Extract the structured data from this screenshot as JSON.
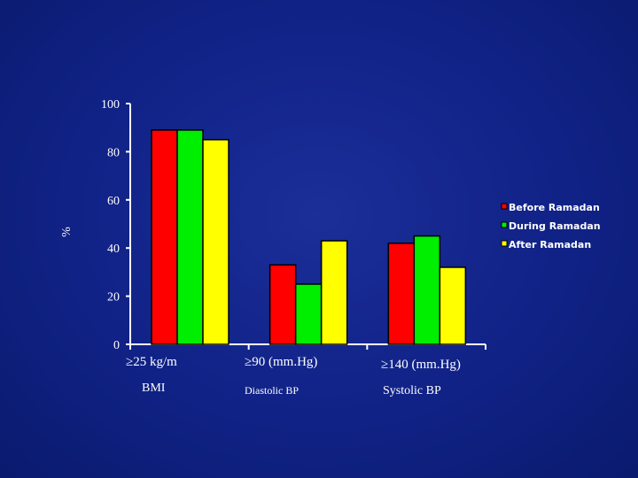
{
  "chart_data": {
    "type": "bar",
    "title": "",
    "xlabel": "",
    "ylabel": "%",
    "ylim": [
      0,
      100
    ],
    "yticks": [
      0,
      20,
      40,
      60,
      80,
      100
    ],
    "categories": [
      "≥25 kg/m",
      "≥90 (mm.Hg)",
      "≥140 (mm.Hg)"
    ],
    "category_sublabels": [
      "BMI",
      "Diastolic BP",
      "Systolic BP"
    ],
    "series": [
      {
        "name": "Before Ramadan",
        "color": "#ff0000",
        "values": [
          89,
          33,
          42
        ]
      },
      {
        "name": "During Ramadan",
        "color": "#00ee00",
        "values": [
          89,
          25,
          45
        ]
      },
      {
        "name": "After Ramadan",
        "color": "#ffff00",
        "values": [
          85,
          43,
          32
        ]
      }
    ],
    "legend_position": "right",
    "grid": false
  }
}
